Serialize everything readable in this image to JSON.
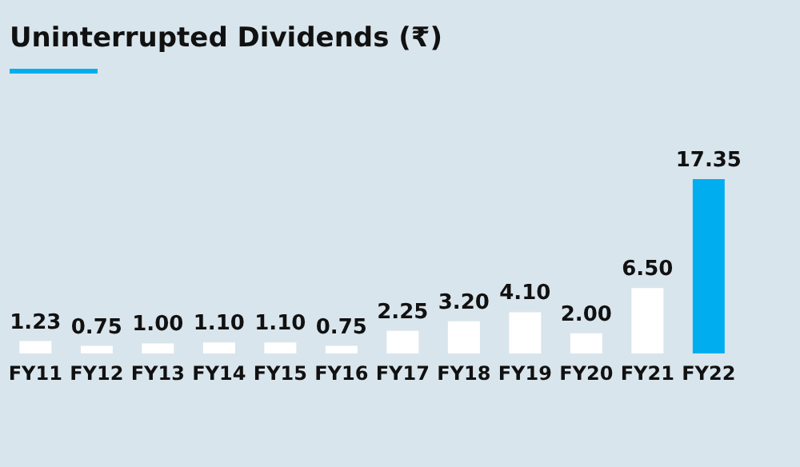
{
  "chart_data": {
    "type": "bar",
    "title": "Uninterrupted Dividends (₹)",
    "categories": [
      "FY11",
      "FY12",
      "FY13",
      "FY14",
      "FY15",
      "FY16",
      "FY17",
      "FY18",
      "FY19",
      "FY20",
      "FY21",
      "FY22"
    ],
    "values": [
      1.23,
      0.75,
      1.0,
      1.1,
      1.1,
      0.75,
      2.25,
      3.2,
      4.1,
      2.0,
      6.5,
      17.35
    ],
    "value_labels": [
      "1.23",
      "0.75",
      "1.00",
      "1.10",
      "1.10",
      "0.75",
      "2.25",
      "3.20",
      "4.10",
      "2.00",
      "6.50",
      "17.35"
    ],
    "colors": [
      "#ffffff",
      "#ffffff",
      "#ffffff",
      "#ffffff",
      "#ffffff",
      "#ffffff",
      "#ffffff",
      "#ffffff",
      "#ffffff",
      "#ffffff",
      "#ffffff",
      "#00aeef"
    ],
    "grid": false,
    "legend": false
  }
}
